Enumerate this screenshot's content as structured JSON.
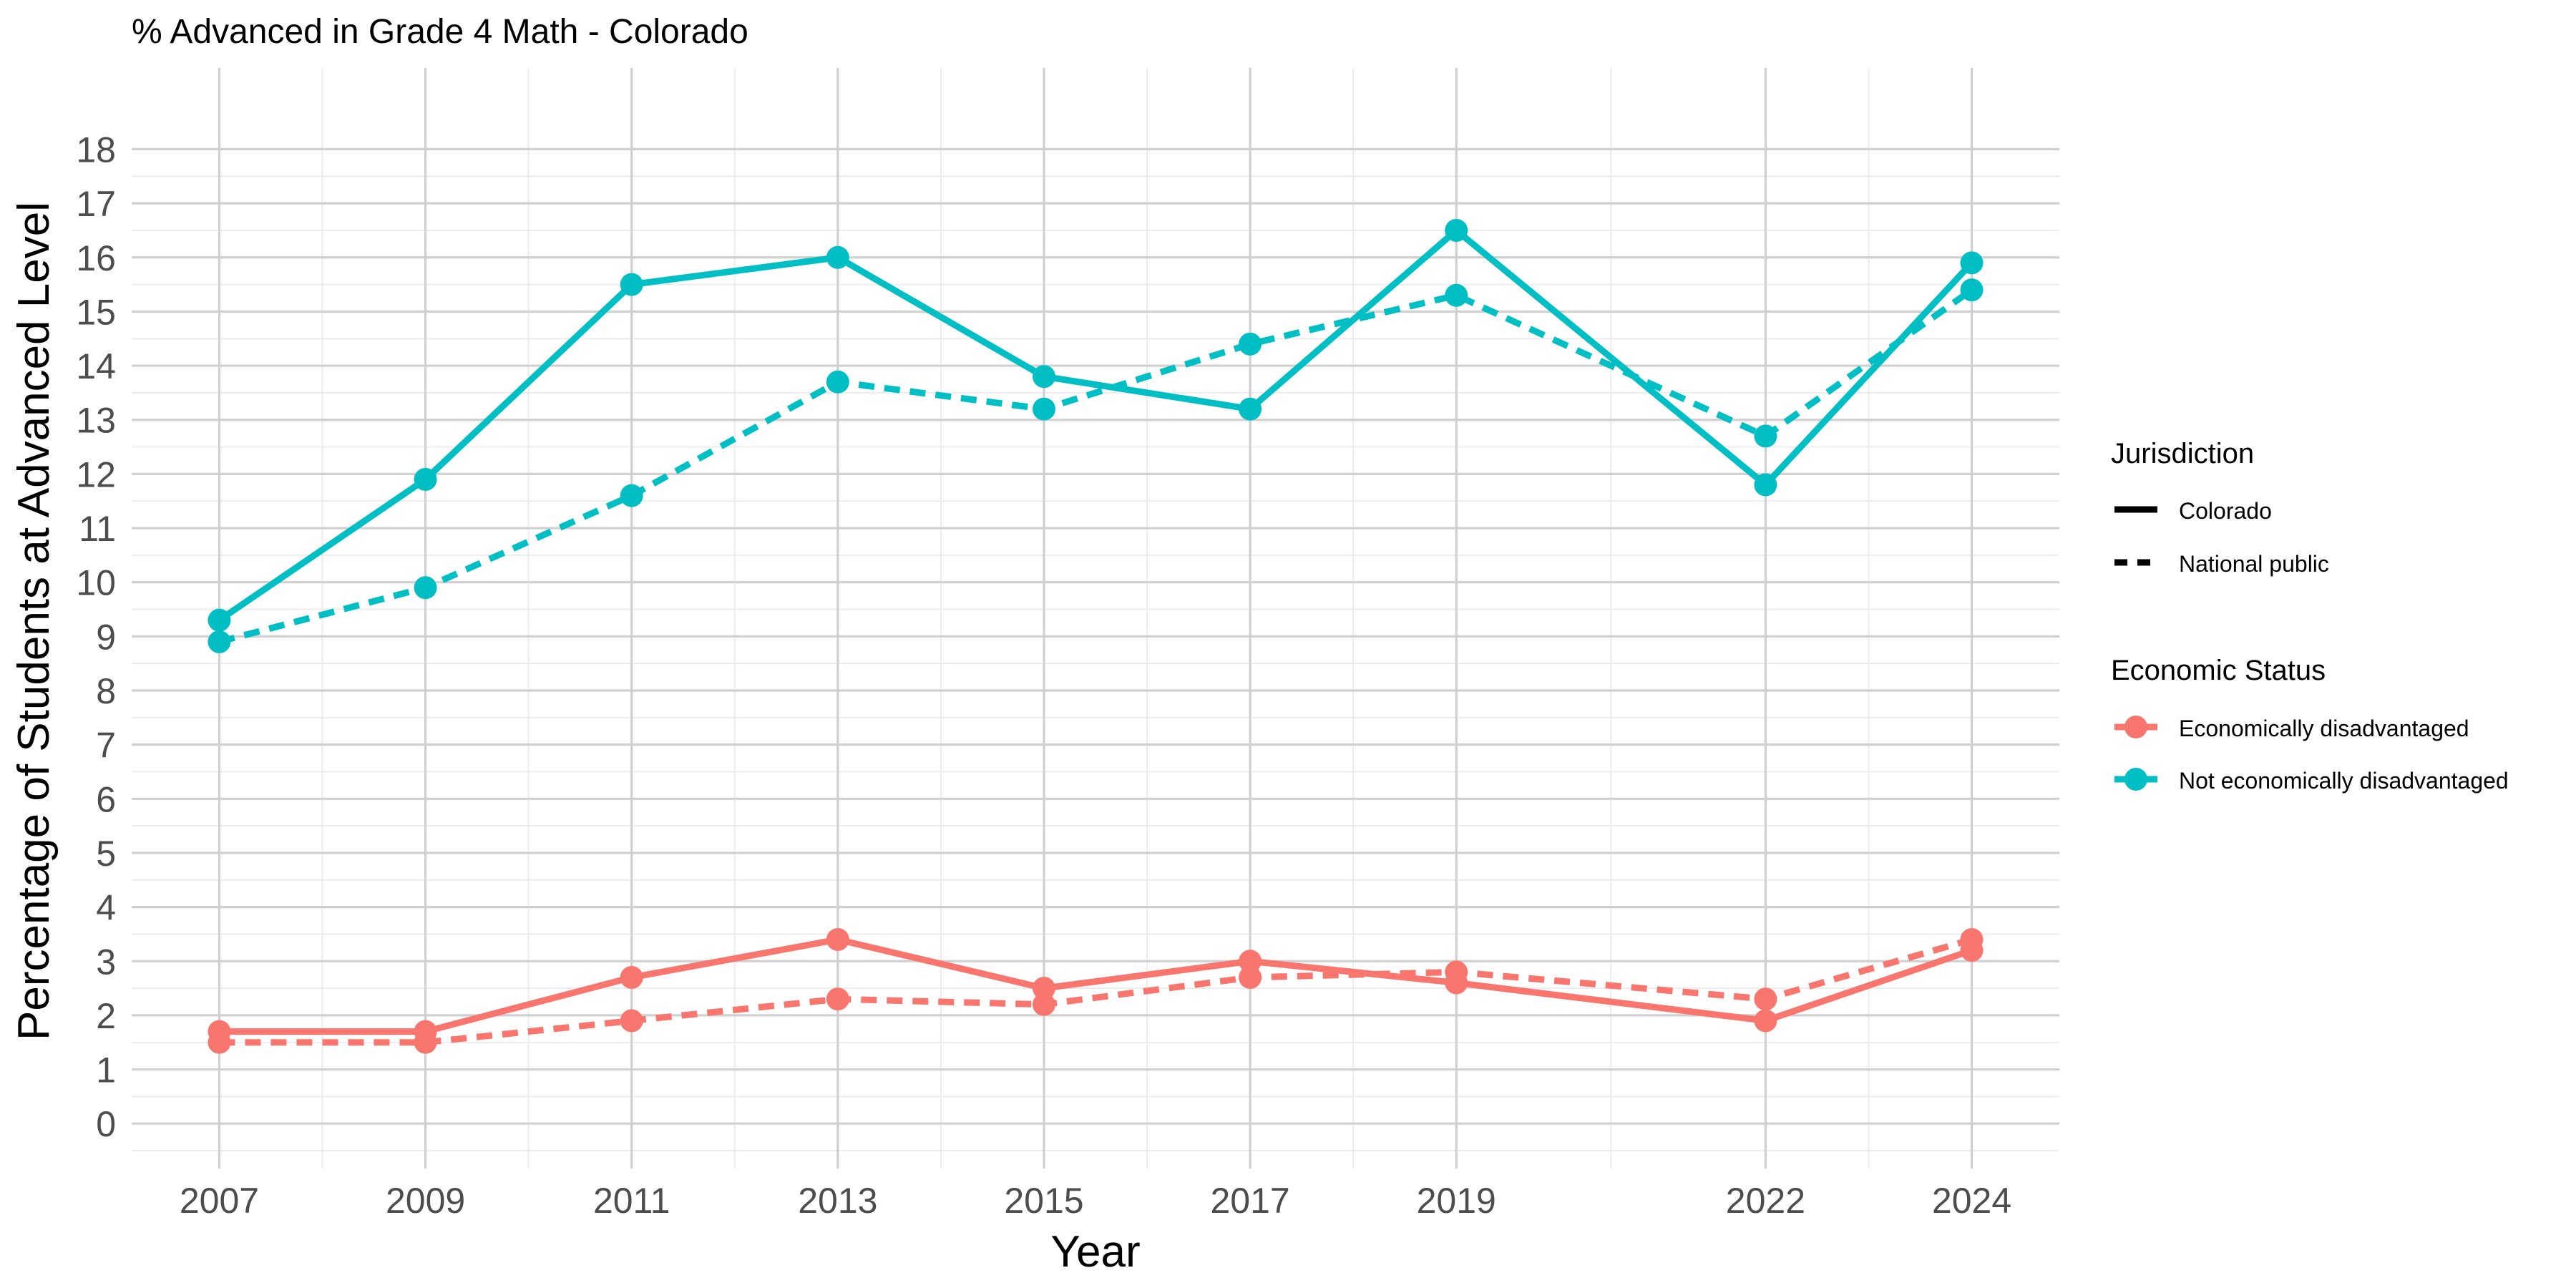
{
  "chart_data": {
    "type": "line",
    "title": "% Advanced in Grade 4 Math - Colorado",
    "xlabel": "Year",
    "ylabel": "Percentage of Students at Advanced Level",
    "x": [
      2007,
      2009,
      2011,
      2013,
      2015,
      2017,
      2019,
      2022,
      2024
    ],
    "x_ticks": [
      2007,
      2009,
      2011,
      2013,
      2015,
      2017,
      2019,
      2022,
      2024
    ],
    "y_ticks": [
      0,
      1,
      2,
      3,
      4,
      5,
      6,
      7,
      8,
      9,
      10,
      11,
      12,
      13,
      14,
      15,
      16,
      17,
      18
    ],
    "xlim": [
      2006.15,
      2024.85
    ],
    "ylim": [
      -0.83,
      19.5
    ],
    "grid": true,
    "legend_position": "right",
    "legends": [
      {
        "title": "Jurisdiction",
        "entries": [
          {
            "label": "Colorado",
            "linetype": "solid"
          },
          {
            "label": "National public",
            "linetype": "dashed"
          }
        ]
      },
      {
        "title": "Economic Status",
        "entries": [
          {
            "label": "Economically disadvantaged",
            "color": "#F8766D"
          },
          {
            "label": "Not economically disadvantaged",
            "color": "#00BFC4"
          }
        ]
      }
    ],
    "series": [
      {
        "status": "Not economically disadvantaged",
        "jurisdiction": "Colorado",
        "color": "#00BFC4",
        "linetype": "solid",
        "values": [
          9.3,
          11.9,
          15.5,
          16.0,
          13.8,
          13.2,
          16.5,
          11.8,
          15.9
        ]
      },
      {
        "status": "Not economically disadvantaged",
        "jurisdiction": "National public",
        "color": "#00BFC4",
        "linetype": "dashed",
        "values": [
          8.9,
          9.9,
          11.6,
          13.7,
          13.2,
          14.4,
          15.3,
          12.7,
          15.4
        ]
      },
      {
        "status": "Economically disadvantaged",
        "jurisdiction": "Colorado",
        "color": "#F8766D",
        "linetype": "solid",
        "values": [
          1.7,
          1.7,
          2.7,
          3.4,
          2.5,
          3.0,
          2.6,
          1.9,
          3.2
        ]
      },
      {
        "status": "Economically disadvantaged",
        "jurisdiction": "National public",
        "color": "#F8766D",
        "linetype": "dashed",
        "values": [
          1.5,
          1.5,
          1.9,
          2.3,
          2.2,
          2.7,
          2.8,
          2.3,
          3.4
        ]
      }
    ]
  }
}
